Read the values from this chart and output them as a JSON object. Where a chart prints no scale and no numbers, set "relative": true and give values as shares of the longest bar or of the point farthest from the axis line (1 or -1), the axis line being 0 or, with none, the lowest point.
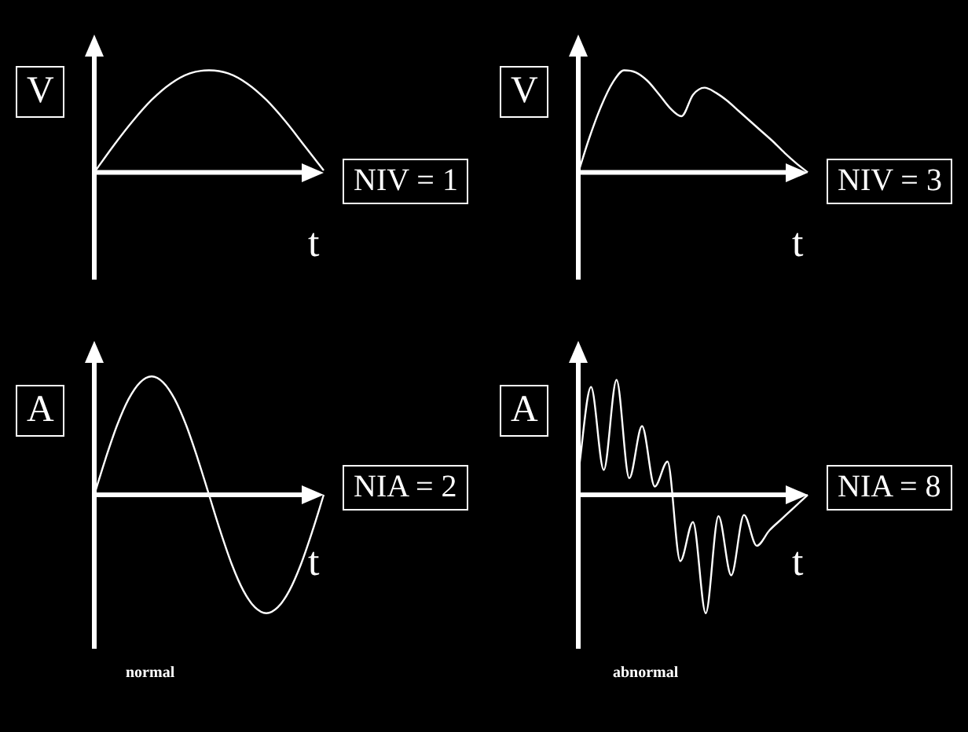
{
  "chart_data": [
    {
      "type": "line",
      "relative": true,
      "ylabel": "V",
      "xlabel": "t",
      "annotations": [
        "NIV = 1"
      ],
      "marker": "none",
      "color": "#ffffff",
      "categories": [
        null,
        null,
        null,
        null,
        null,
        null,
        null,
        null,
        null,
        null,
        null,
        null,
        null
      ],
      "values": [
        0,
        0.26,
        0.5,
        0.71,
        0.87,
        0.97,
        1,
        0.97,
        0.87,
        0.71,
        0.5,
        0.26,
        0.02
      ]
    },
    {
      "type": "line",
      "relative": true,
      "ylabel": "V",
      "xlabel": "t",
      "annotations": [
        "NIV = 3"
      ],
      "marker": "none",
      "color": "#ffffff",
      "categories": [
        null,
        null,
        null,
        null,
        null,
        null,
        null,
        null,
        null,
        null,
        null,
        null,
        null,
        null,
        null,
        null,
        null,
        null,
        null,
        null,
        null
      ],
      "values": [
        0,
        0.35,
        0.65,
        0.88,
        1,
        0.98,
        0.9,
        0.77,
        0.63,
        0.55,
        0.76,
        0.83,
        0.78,
        0.7,
        0.6,
        0.5,
        0.4,
        0.3,
        0.19,
        0.09,
        0
      ]
    },
    {
      "type": "line",
      "relative": true,
      "ylabel": "A",
      "xlabel": "t",
      "annotations": [
        "NIA = 2",
        "normal"
      ],
      "marker": "none",
      "color": "#ffffff",
      "categories": [
        null,
        null,
        null,
        null,
        null,
        null,
        null,
        null,
        null,
        null,
        null,
        null,
        null,
        null,
        null,
        null,
        null,
        null,
        null,
        null,
        null
      ],
      "values": [
        0,
        0.31,
        0.59,
        0.81,
        0.95,
        1,
        0.95,
        0.81,
        0.59,
        0.31,
        0,
        -0.31,
        -0.59,
        -0.81,
        -0.95,
        -1,
        -0.95,
        -0.81,
        -0.59,
        -0.31,
        0
      ]
    },
    {
      "type": "line",
      "relative": true,
      "ylabel": "A",
      "xlabel": "t",
      "annotations": [
        "NIA = 8",
        "abnormal"
      ],
      "marker": "none",
      "color": "#ffffff",
      "categories": [
        null,
        null,
        null,
        null,
        null,
        null,
        null,
        null,
        null,
        null,
        null,
        null,
        null,
        null,
        null,
        null,
        null,
        null,
        null
      ],
      "values": [
        0.18,
        0.91,
        0.21,
        0.97,
        0.14,
        0.58,
        0.07,
        0.28,
        -0.56,
        -0.23,
        -1,
        -0.18,
        -0.68,
        -0.17,
        -0.43,
        -0.3,
        -0.2,
        -0.1,
        0
      ]
    }
  ]
}
